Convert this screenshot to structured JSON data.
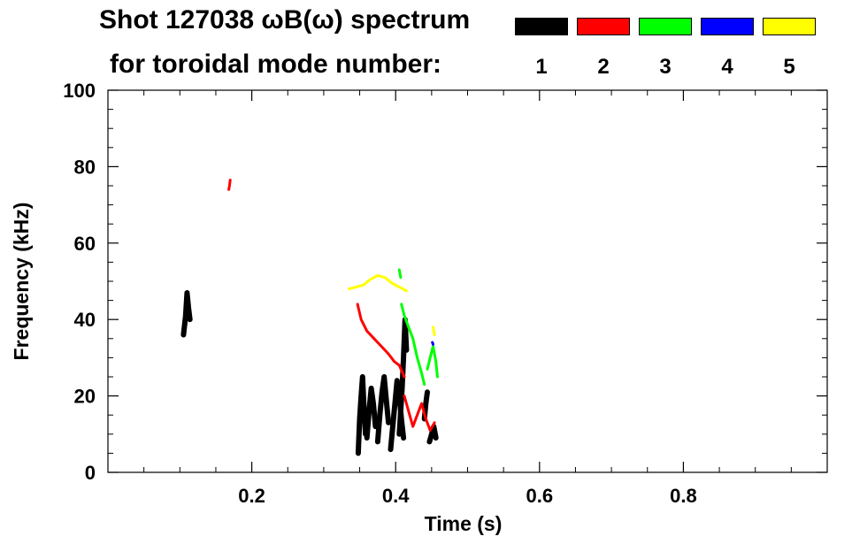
{
  "title_line1": "Shot 127038 ωB(ω) spectrum",
  "title_line2": "for toroidal mode number:",
  "legend": [
    {
      "label": "1",
      "color": "#000000"
    },
    {
      "label": "2",
      "color": "#ff0000"
    },
    {
      "label": "3",
      "color": "#00ff00"
    },
    {
      "label": "4",
      "color": "#0000ff"
    },
    {
      "label": "5",
      "color": "#ffff00"
    }
  ],
  "chart_data": {
    "type": "scatter",
    "xlabel": "Time (s)",
    "ylabel": "Frequency (kHz)",
    "xlim": [
      0.0,
      1.0
    ],
    "ylim": [
      0,
      100
    ],
    "x_ticks": [
      0.2,
      0.4,
      0.6,
      0.8
    ],
    "y_ticks": [
      0,
      20,
      40,
      60,
      80,
      100
    ],
    "grid": false,
    "series": [
      {
        "name": "1",
        "color": "#000000",
        "traces": [
          [
            [
              0.105,
              36
            ],
            [
              0.108,
              41
            ],
            [
              0.11,
              47
            ],
            [
              0.112,
              43
            ],
            [
              0.114,
              40
            ]
          ],
          [
            [
              0.348,
              5
            ],
            [
              0.35,
              14
            ],
            [
              0.352,
              20
            ],
            [
              0.354,
              25
            ],
            [
              0.356,
              17
            ],
            [
              0.358,
              10
            ]
          ],
          [
            [
              0.36,
              9
            ],
            [
              0.363,
              16
            ],
            [
              0.366,
              22
            ],
            [
              0.369,
              18
            ],
            [
              0.372,
              12
            ]
          ],
          [
            [
              0.375,
              8
            ],
            [
              0.378,
              15
            ],
            [
              0.381,
              21
            ],
            [
              0.384,
              25
            ],
            [
              0.387,
              19
            ],
            [
              0.39,
              13
            ]
          ],
          [
            [
              0.393,
              6
            ],
            [
              0.396,
              12
            ],
            [
              0.399,
              18
            ],
            [
              0.402,
              24
            ],
            [
              0.405,
              20
            ],
            [
              0.408,
              14
            ],
            [
              0.411,
              9
            ]
          ],
          [
            [
              0.405,
              10
            ],
            [
              0.407,
              16
            ],
            [
              0.409,
              22
            ],
            [
              0.411,
              30
            ],
            [
              0.413,
              40
            ],
            [
              0.415,
              32
            ]
          ],
          [
            [
              0.44,
              14
            ],
            [
              0.442,
              18
            ],
            [
              0.444,
              21
            ]
          ],
          [
            [
              0.447,
              8
            ],
            [
              0.45,
              10
            ],
            [
              0.453,
              12
            ],
            [
              0.456,
              9
            ]
          ]
        ]
      },
      {
        "name": "2",
        "color": "#ff0000",
        "traces": [
          [
            [
              0.168,
              74
            ],
            [
              0.169,
              75
            ],
            [
              0.17,
              76.5
            ]
          ],
          [
            [
              0.347,
              44
            ],
            [
              0.352,
              40
            ],
            [
              0.36,
              37
            ],
            [
              0.37,
              35
            ],
            [
              0.38,
              33
            ],
            [
              0.39,
              31
            ],
            [
              0.398,
              29
            ],
            [
              0.405,
              28
            ],
            [
              0.412,
              25
            ]
          ],
          [
            [
              0.412,
              20
            ],
            [
              0.418,
              16
            ],
            [
              0.424,
              12
            ],
            [
              0.43,
              15
            ],
            [
              0.436,
              18
            ],
            [
              0.442,
              14
            ],
            [
              0.448,
              11
            ],
            [
              0.454,
              13
            ]
          ]
        ]
      },
      {
        "name": "3",
        "color": "#00ff00",
        "traces": [
          [
            [
              0.408,
              44
            ],
            [
              0.412,
              41
            ],
            [
              0.418,
              38
            ],
            [
              0.424,
              35
            ],
            [
              0.43,
              30
            ],
            [
              0.436,
              26
            ],
            [
              0.44,
              23
            ]
          ],
          [
            [
              0.444,
              27
            ],
            [
              0.448,
              30
            ],
            [
              0.452,
              33
            ],
            [
              0.456,
              29
            ],
            [
              0.458,
              25
            ]
          ],
          [
            [
              0.405,
              53
            ],
            [
              0.407,
              51
            ]
          ]
        ]
      },
      {
        "name": "4",
        "color": "#0000ff",
        "traces": [
          [
            [
              0.451,
              34
            ],
            [
              0.452,
              33.5
            ]
          ]
        ]
      },
      {
        "name": "5",
        "color": "#ffff00",
        "traces": [
          [
            [
              0.335,
              48
            ],
            [
              0.345,
              48.5
            ],
            [
              0.355,
              49
            ],
            [
              0.365,
              50.5
            ],
            [
              0.375,
              51.5
            ],
            [
              0.385,
              51
            ],
            [
              0.395,
              49.5
            ],
            [
              0.405,
              48.5
            ],
            [
              0.415,
              47.5
            ]
          ],
          [
            [
              0.452,
              38
            ],
            [
              0.454,
              36
            ]
          ]
        ]
      }
    ]
  }
}
